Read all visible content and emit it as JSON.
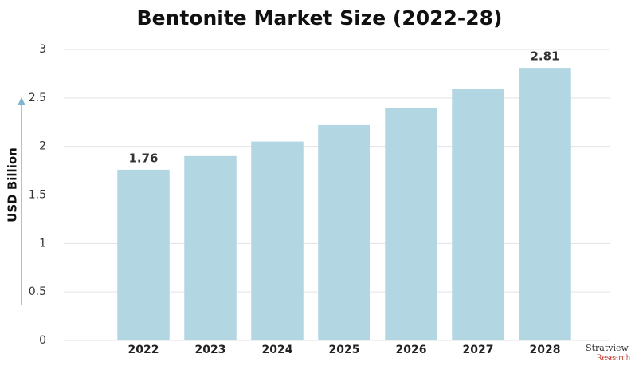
{
  "chart_data": {
    "type": "bar",
    "title": "Bentonite Market Size (2022-28)",
    "y_label": "USD Billion",
    "categories": [
      "2022",
      "2023",
      "2024",
      "2025",
      "2026",
      "2027",
      "2028"
    ],
    "values": [
      1.76,
      1.9,
      2.05,
      2.22,
      2.4,
      2.59,
      2.81
    ],
    "value_labels": [
      "1.76",
      null,
      null,
      null,
      null,
      null,
      "2.81"
    ],
    "color": "#b3d6e3",
    "ylim": [
      0,
      3
    ],
    "yticks": [
      0,
      0.5,
      1,
      1.5,
      2,
      2.5,
      3
    ],
    "grid": true,
    "logo": {
      "name": "Stratview",
      "sub": "Research"
    }
  }
}
